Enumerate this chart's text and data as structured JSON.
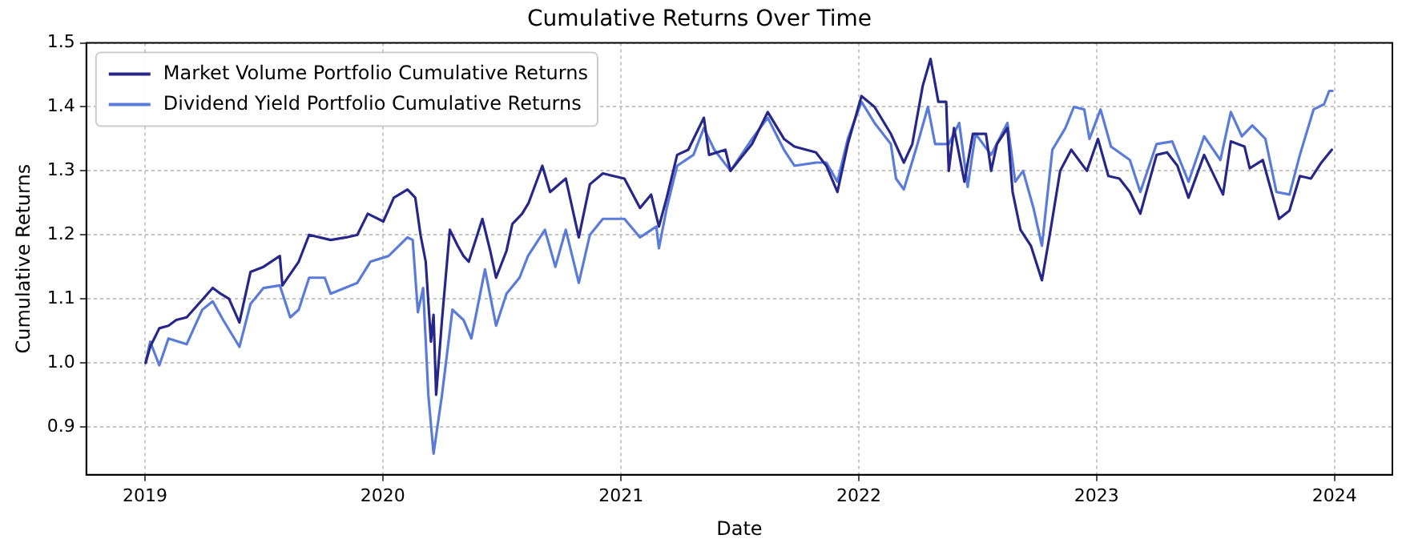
{
  "chart_data": {
    "type": "line",
    "title": "Cumulative Returns Over Time",
    "xlabel": "Date",
    "ylabel": "Cumulative Returns",
    "grid": true,
    "legend": "top left",
    "marker": "none",
    "line_style": "solid",
    "xlim": [
      "2018-10-03",
      "2024-03-30"
    ],
    "xticks": [
      {
        "value": "2019-01-01",
        "label": "2019"
      },
      {
        "value": "2020-01-01",
        "label": "2020"
      },
      {
        "value": "2021-01-01",
        "label": "2021"
      },
      {
        "value": "2022-01-01",
        "label": "2022"
      },
      {
        "value": "2023-01-01",
        "label": "2023"
      },
      {
        "value": "2024-01-01",
        "label": "2024"
      }
    ],
    "ylim": [
      0.825,
      1.5
    ],
    "yticks": [
      {
        "value": 0.9,
        "label": "0.9"
      },
      {
        "value": 1.0,
        "label": "1.0"
      },
      {
        "value": 1.1,
        "label": "1.1"
      },
      {
        "value": 1.2,
        "label": "1.2"
      },
      {
        "value": 1.3,
        "label": "1.3"
      },
      {
        "value": 1.4,
        "label": "1.4"
      },
      {
        "value": 1.5,
        "label": "1.5"
      }
    ],
    "series": [
      {
        "name": "Market Volume Portfolio Cumulative Returns",
        "color": "#27278a",
        "x": [
          "2019-01-02",
          "2019-01-09",
          "2019-01-23",
          "2019-02-06",
          "2019-02-18",
          "2019-03-06",
          "2019-04-15",
          "2019-04-27",
          "2019-05-10",
          "2019-05-26",
          "2019-06-12",
          "2019-07-02",
          "2019-07-27",
          "2019-07-31",
          "2019-08-25",
          "2019-09-10",
          "2019-10-13",
          "2019-11-06",
          "2019-11-23",
          "2019-12-09",
          "2020-01-02",
          "2020-01-18",
          "2020-02-08",
          "2020-02-20",
          "2020-02-28",
          "2020-03-07",
          "2020-03-15",
          "2020-03-19",
          "2020-03-23",
          "2020-04-01",
          "2020-04-13",
          "2020-04-25",
          "2020-05-04",
          "2020-05-12",
          "2020-06-02",
          "2020-06-14",
          "2020-06-23",
          "2020-07-09",
          "2020-07-18",
          "2020-08-02",
          "2020-08-12",
          "2020-09-02",
          "2020-09-14",
          "2020-10-08",
          "2020-10-28",
          "2020-11-14",
          "2020-12-04",
          "2021-01-06",
          "2021-01-30",
          "2021-02-16",
          "2021-02-28",
          "2021-03-12",
          "2021-03-28",
          "2021-04-14",
          "2021-05-08",
          "2021-05-16",
          "2021-06-10",
          "2021-06-18",
          "2021-07-21",
          "2021-08-14",
          "2021-09-08",
          "2021-09-24",
          "2021-10-27",
          "2021-11-12",
          "2021-11-29",
          "2021-12-15",
          "2022-01-05",
          "2022-01-25",
          "2022-02-19",
          "2022-03-11",
          "2022-03-24",
          "2022-04-09",
          "2022-04-21",
          "2022-05-03",
          "2022-05-15",
          "2022-05-19",
          "2022-05-27",
          "2022-06-12",
          "2022-06-25",
          "2022-07-15",
          "2022-07-23",
          "2022-08-01",
          "2022-08-17",
          "2022-08-25",
          "2022-09-06",
          "2022-09-22",
          "2022-10-09",
          "2022-10-21",
          "2022-11-06",
          "2022-11-23",
          "2022-12-17",
          "2023-01-03",
          "2023-01-19",
          "2023-02-05",
          "2023-02-21",
          "2023-03-09",
          "2023-04-03",
          "2023-04-19",
          "2023-05-05",
          "2023-05-22",
          "2023-06-15",
          "2023-07-14",
          "2023-07-26",
          "2023-08-16",
          "2023-08-24",
          "2023-09-13",
          "2023-10-08",
          "2023-10-24",
          "2023-11-09",
          "2023-11-26",
          "2023-12-12",
          "2023-12-28"
        ],
        "values": [
          1.0,
          1.025,
          1.054,
          1.058,
          1.067,
          1.071,
          1.117,
          1.108,
          1.1,
          1.063,
          1.142,
          1.15,
          1.167,
          1.121,
          1.158,
          1.2,
          1.192,
          1.196,
          1.2,
          1.233,
          1.221,
          1.258,
          1.271,
          1.258,
          1.2,
          1.158,
          1.033,
          1.075,
          0.95,
          1.067,
          1.208,
          1.183,
          1.167,
          1.158,
          1.225,
          1.175,
          1.133,
          1.175,
          1.217,
          1.233,
          1.25,
          1.308,
          1.267,
          1.288,
          1.196,
          1.279,
          1.296,
          1.288,
          1.242,
          1.263,
          1.213,
          1.258,
          1.325,
          1.333,
          1.383,
          1.325,
          1.333,
          1.3,
          1.342,
          1.392,
          1.35,
          1.338,
          1.329,
          1.308,
          1.267,
          1.342,
          1.417,
          1.4,
          1.358,
          1.313,
          1.342,
          1.433,
          1.475,
          1.408,
          1.408,
          1.3,
          1.367,
          1.283,
          1.358,
          1.358,
          1.3,
          1.342,
          1.367,
          1.267,
          1.208,
          1.183,
          1.129,
          1.2,
          1.3,
          1.333,
          1.3,
          1.35,
          1.292,
          1.288,
          1.267,
          1.233,
          1.325,
          1.329,
          1.308,
          1.258,
          1.325,
          1.263,
          1.346,
          1.338,
          1.304,
          1.317,
          1.225,
          1.238,
          1.292,
          1.288,
          1.313,
          1.333
        ]
      },
      {
        "name": "Dividend Yield Portfolio Cumulative Returns",
        "color": "#5b7bd8",
        "x": [
          "2019-01-02",
          "2019-01-09",
          "2019-01-23",
          "2019-02-06",
          "2019-03-06",
          "2019-03-30",
          "2019-04-15",
          "2019-05-01",
          "2019-05-26",
          "2019-06-12",
          "2019-07-02",
          "2019-07-27",
          "2019-08-12",
          "2019-08-25",
          "2019-09-10",
          "2019-10-04",
          "2019-10-13",
          "2019-11-23",
          "2019-12-13",
          "2020-01-10",
          "2020-02-08",
          "2020-02-16",
          "2020-02-24",
          "2020-03-03",
          "2020-03-11",
          "2020-03-19",
          "2020-04-01",
          "2020-04-17",
          "2020-05-04",
          "2020-05-16",
          "2020-06-06",
          "2020-06-23",
          "2020-07-09",
          "2020-07-29",
          "2020-08-11",
          "2020-09-06",
          "2020-09-22",
          "2020-10-08",
          "2020-10-28",
          "2020-11-14",
          "2020-12-04",
          "2021-01-06",
          "2021-01-30",
          "2021-02-24",
          "2021-02-28",
          "2021-03-12",
          "2021-03-28",
          "2021-04-22",
          "2021-05-08",
          "2021-05-24",
          "2021-06-18",
          "2021-07-21",
          "2021-08-14",
          "2021-09-08",
          "2021-09-24",
          "2021-10-27",
          "2021-11-12",
          "2021-11-29",
          "2021-12-15",
          "2022-01-05",
          "2022-01-25",
          "2022-02-19",
          "2022-02-27",
          "2022-03-11",
          "2022-04-01",
          "2022-04-17",
          "2022-04-28",
          "2022-05-19",
          "2022-06-04",
          "2022-06-17",
          "2022-06-29",
          "2022-07-23",
          "2022-08-17",
          "2022-08-29",
          "2022-09-10",
          "2022-09-26",
          "2022-10-09",
          "2022-10-25",
          "2022-11-14",
          "2022-11-27",
          "2022-12-13",
          "2022-12-21",
          "2023-01-07",
          "2023-01-23",
          "2023-02-21",
          "2023-03-09",
          "2023-04-03",
          "2023-04-27",
          "2023-05-22",
          "2023-06-15",
          "2023-07-10",
          "2023-07-26",
          "2023-08-12",
          "2023-08-28",
          "2023-09-17",
          "2023-10-04",
          "2023-10-24",
          "2023-11-09",
          "2023-11-30",
          "2023-12-16",
          "2023-12-24",
          "2023-12-29"
        ],
        "values": [
          1.0,
          1.033,
          0.996,
          1.038,
          1.029,
          1.083,
          1.096,
          1.067,
          1.025,
          1.092,
          1.117,
          1.121,
          1.071,
          1.083,
          1.133,
          1.133,
          1.108,
          1.125,
          1.158,
          1.167,
          1.196,
          1.192,
          1.079,
          1.117,
          0.95,
          0.858,
          0.95,
          1.083,
          1.067,
          1.038,
          1.146,
          1.058,
          1.108,
          1.133,
          1.167,
          1.208,
          1.15,
          1.208,
          1.125,
          1.2,
          1.225,
          1.225,
          1.196,
          1.213,
          1.179,
          1.242,
          1.308,
          1.325,
          1.367,
          1.333,
          1.3,
          1.35,
          1.383,
          1.333,
          1.308,
          1.313,
          1.313,
          1.283,
          1.35,
          1.408,
          1.375,
          1.342,
          1.288,
          1.271,
          1.342,
          1.4,
          1.342,
          1.342,
          1.375,
          1.275,
          1.358,
          1.325,
          1.375,
          1.283,
          1.3,
          1.242,
          1.183,
          1.333,
          1.367,
          1.4,
          1.396,
          1.35,
          1.396,
          1.338,
          1.317,
          1.267,
          1.342,
          1.346,
          1.283,
          1.354,
          1.317,
          1.392,
          1.354,
          1.371,
          1.35,
          1.267,
          1.263,
          1.325,
          1.396,
          1.404,
          1.425,
          1.425
        ]
      }
    ]
  }
}
